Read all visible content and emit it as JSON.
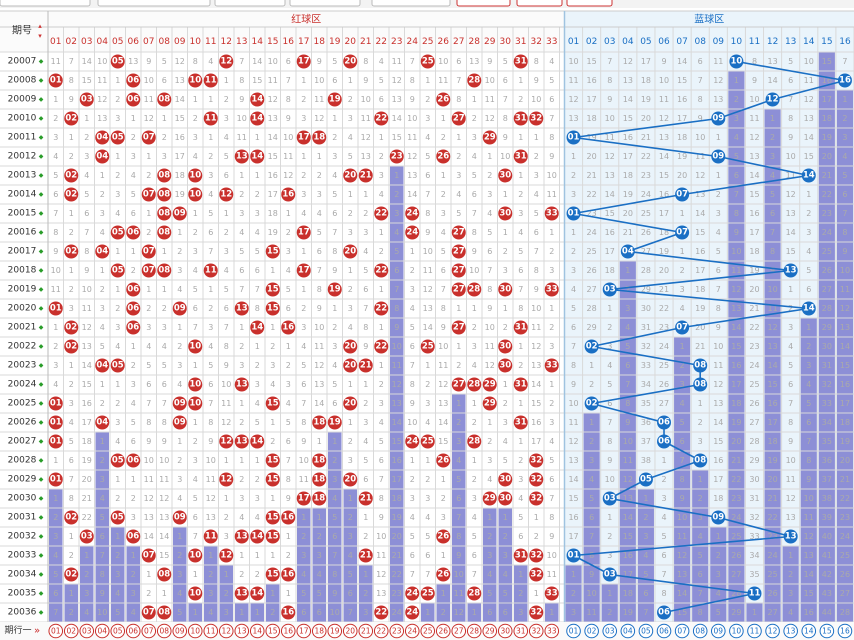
{
  "header": {
    "period_label": "期号",
    "red_zone_label": "红球区",
    "blue_zone_label": "蓝球区",
    "footer_label": "期行一"
  },
  "red_numbers": [
    "01",
    "02",
    "03",
    "04",
    "05",
    "06",
    "07",
    "08",
    "09",
    "10",
    "11",
    "12",
    "13",
    "14",
    "15",
    "16",
    "17",
    "18",
    "19",
    "20",
    "21",
    "22",
    "23",
    "24",
    "25",
    "26",
    "27",
    "28",
    "29",
    "30",
    "31",
    "32",
    "33"
  ],
  "blue_numbers": [
    "01",
    "02",
    "03",
    "04",
    "05",
    "06",
    "07",
    "08",
    "09",
    "10",
    "11",
    "12",
    "13",
    "14",
    "15",
    "16"
  ],
  "colors": {
    "red_ball": "#c9302c",
    "blue_ball": "#1a6fc4",
    "red_header_text": "#c9302c",
    "blue_header_text": "#1a6fc4",
    "red_bar": "#8d8fd6",
    "blue_bar": "#8d8fd6",
    "blue_zone_bg": "#eaf4fb",
    "grid_line": "#d9d9d9",
    "period_arrow": "#2a9d2a"
  },
  "draws": [
    {
      "period": "20007",
      "red": [
        5,
        12,
        17,
        20,
        25,
        31
      ],
      "blue": 10
    },
    {
      "period": "20008",
      "red": [
        1,
        6,
        10,
        11,
        28
      ],
      "blue": 16
    },
    {
      "period": "20009",
      "red": [
        3,
        6,
        8,
        14,
        19,
        26
      ],
      "blue": 12
    },
    {
      "period": "20010",
      "red": [
        2,
        11,
        14,
        22,
        27,
        31,
        32
      ],
      "blue": 9
    },
    {
      "period": "20011",
      "red": [
        4,
        5,
        7,
        17,
        18,
        29
      ],
      "blue": 1
    },
    {
      "period": "20012",
      "red": [
        4,
        13,
        14,
        23,
        26,
        31
      ],
      "blue": 9
    },
    {
      "period": "20013",
      "red": [
        2,
        8,
        10,
        20,
        21,
        30
      ],
      "blue": 14
    },
    {
      "period": "20014",
      "red": [
        2,
        7,
        8,
        10,
        12,
        16
      ],
      "blue": 7
    },
    {
      "period": "20015",
      "red": [
        8,
        9,
        22,
        24,
        30,
        33
      ],
      "blue": 1
    },
    {
      "period": "20016",
      "red": [
        5,
        6,
        8,
        17,
        24,
        27
      ],
      "blue": 7
    },
    {
      "period": "20017",
      "red": [
        2,
        4,
        7,
        15,
        20,
        27
      ],
      "blue": 4
    },
    {
      "period": "20018",
      "red": [
        5,
        7,
        8,
        11,
        17,
        22,
        27
      ],
      "blue": 13
    },
    {
      "period": "20019",
      "red": [
        6,
        15,
        19,
        27,
        28,
        30,
        33
      ],
      "blue": 3
    },
    {
      "period": "20020",
      "red": [
        1,
        6,
        9,
        13,
        15,
        22
      ],
      "blue": 14
    },
    {
      "period": "20021",
      "red": [
        2,
        6,
        14,
        16,
        27,
        31
      ],
      "blue": 7
    },
    {
      "period": "20022",
      "red": [
        2,
        10,
        20,
        22,
        25,
        30
      ],
      "blue": 2
    },
    {
      "period": "20023",
      "red": [
        4,
        5,
        20,
        21,
        30,
        33
      ],
      "blue": 8
    },
    {
      "period": "20024",
      "red": [
        10,
        13,
        27,
        28,
        29,
        31
      ],
      "blue": 8
    },
    {
      "period": "20025",
      "red": [
        1,
        9,
        10,
        15,
        20,
        29
      ],
      "blue": 2
    },
    {
      "period": "20026",
      "red": [
        1,
        4,
        9,
        18,
        19,
        31
      ],
      "blue": 6
    },
    {
      "period": "20027",
      "red": [
        1,
        12,
        13,
        14,
        24,
        25,
        28
      ],
      "blue": 6
    },
    {
      "period": "20028",
      "red": [
        5,
        6,
        15,
        18,
        26,
        32
      ],
      "blue": 8
    },
    {
      "period": "20029",
      "red": [
        1,
        12,
        15,
        18,
        20,
        30,
        32
      ],
      "blue": 5
    },
    {
      "period": "20030",
      "red": [
        17,
        18,
        21,
        29,
        30,
        32
      ],
      "blue": 3
    },
    {
      "period": "20031",
      "red": [
        2,
        5,
        9,
        15,
        16
      ],
      "blue": 9
    },
    {
      "period": "20032",
      "red": [
        3,
        6,
        11,
        13,
        14,
        15,
        26
      ],
      "blue": 13
    },
    {
      "period": "20033",
      "red": [
        7,
        10,
        12,
        21,
        31,
        32
      ],
      "blue": 1
    },
    {
      "period": "20034",
      "red": [
        2,
        8,
        15,
        16,
        26,
        32
      ],
      "blue": 3
    },
    {
      "period": "20035",
      "red": [
        10,
        13,
        14,
        24,
        25,
        28,
        33
      ],
      "blue": 11
    },
    {
      "period": "20036",
      "red": [
        7,
        8,
        16,
        22,
        24,
        32
      ],
      "blue": 6
    }
  ]
}
